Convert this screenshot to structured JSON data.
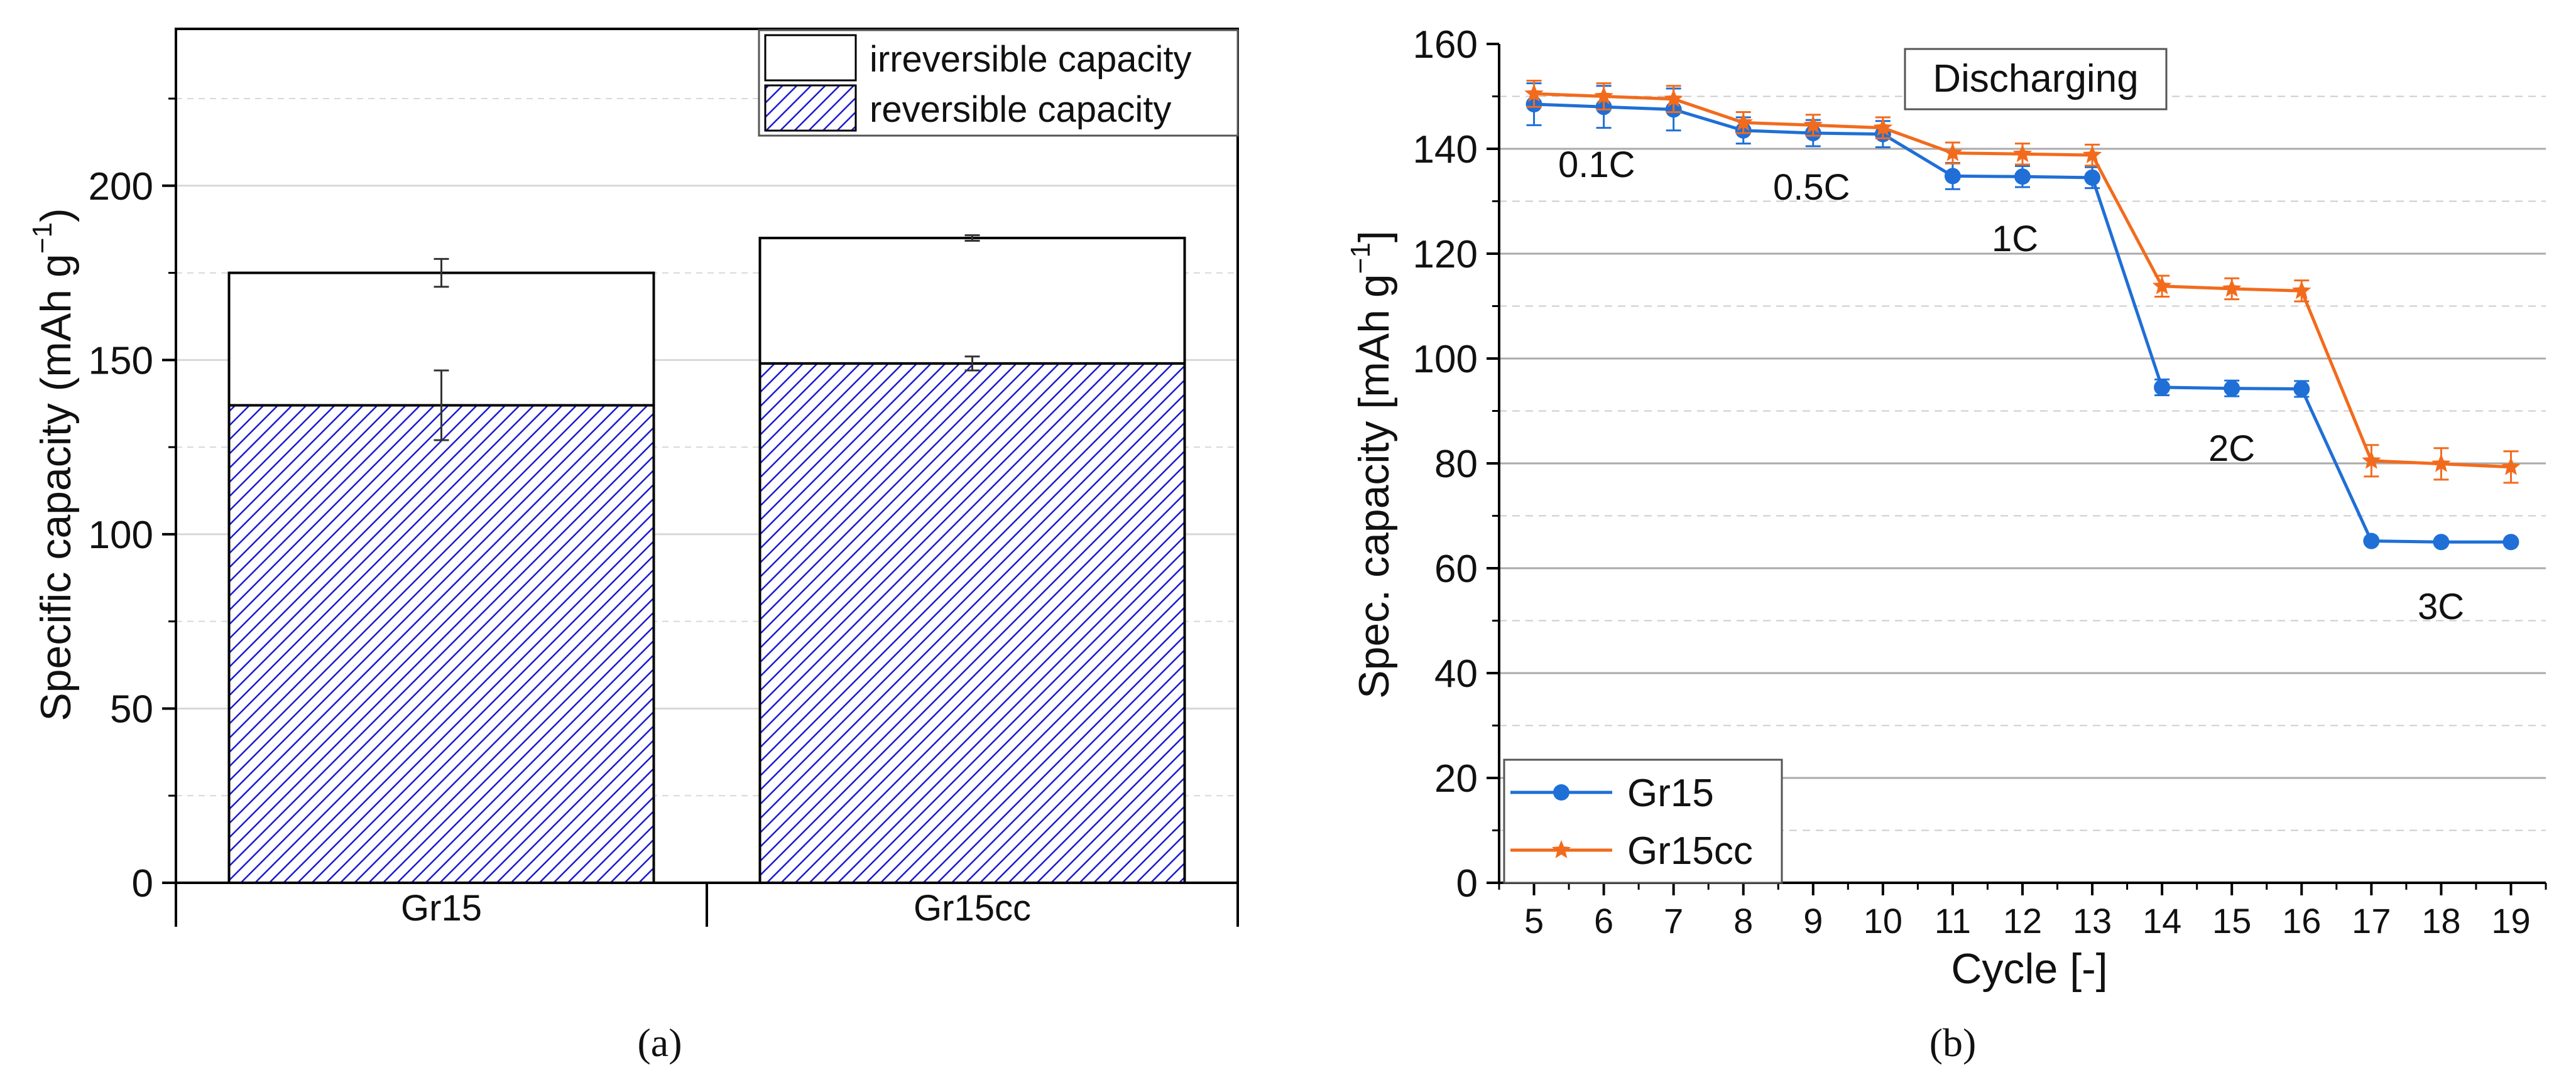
{
  "colors": {
    "blue": "#1f6fd6",
    "orange": "#f26b1d",
    "hatch": "#1a1ad0",
    "axis": "#000000",
    "grid": "#bdbdbd"
  },
  "panel_labels": {
    "a": "(a)",
    "b": "(b)"
  },
  "chart_data": [
    {
      "type": "bar",
      "stacked": true,
      "categories": [
        "Gr15",
        "Gr15cc"
      ],
      "series": [
        {
          "name": "reversible capacity",
          "values": [
            137,
            149
          ],
          "errors": [
            10,
            2
          ]
        },
        {
          "name": "irreversible capacity",
          "totals": [
            175,
            185
          ],
          "errors": [
            4,
            0.8
          ]
        }
      ],
      "ylabel": "Specific capacity (mAh g",
      "ylabel_sup": "−1",
      "ylabel_end": ")",
      "ylim": [
        0,
        245
      ],
      "yticks": [
        0,
        50,
        100,
        150,
        200
      ],
      "legend": {
        "position": "top-right",
        "entries": [
          "irreversible capacity",
          "reversible capacity"
        ]
      },
      "grid": true
    },
    {
      "type": "line",
      "title": "Discharging",
      "xlabel": "Cycle [-]",
      "ylabel": "Spec. capacity [mAh g",
      "ylabel_sup": "−1",
      "ylabel_end": "]",
      "x": [
        5,
        6,
        7,
        8,
        9,
        10,
        11,
        12,
        13,
        14,
        15,
        16,
        17,
        18,
        19
      ],
      "xlim": [
        4.5,
        19.5
      ],
      "ylim": [
        0,
        160
      ],
      "yticks": [
        0,
        20,
        40,
        60,
        80,
        100,
        120,
        140,
        160
      ],
      "series": [
        {
          "name": "Gr15",
          "marker": "circle",
          "values": [
            148.5,
            148,
            147.5,
            143.5,
            143,
            142.8,
            134.8,
            134.7,
            134.5,
            94.5,
            94.3,
            94.2,
            65.2,
            65,
            65
          ],
          "errors": [
            4,
            4,
            4,
            2.5,
            2.5,
            2.5,
            2.5,
            2,
            2,
            1.5,
            1.5,
            1.5,
            0.3,
            0.3,
            0.3
          ]
        },
        {
          "name": "Gr15cc",
          "marker": "star",
          "values": [
            150.5,
            150,
            149.5,
            145,
            144.5,
            144,
            139.2,
            139,
            138.8,
            113.8,
            113.3,
            112.9,
            80.5,
            79.9,
            79.3
          ],
          "errors": [
            2.5,
            2.5,
            2.5,
            2,
            2,
            2,
            2,
            2,
            2,
            2,
            2,
            2,
            3,
            3,
            3
          ]
        }
      ],
      "annotations": [
        "0.1C",
        "0.5C",
        "1C",
        "2C",
        "3C"
      ],
      "legend": {
        "position": "bottom-left",
        "entries": [
          "Gr15",
          "Gr15cc"
        ]
      },
      "grid": true
    }
  ]
}
